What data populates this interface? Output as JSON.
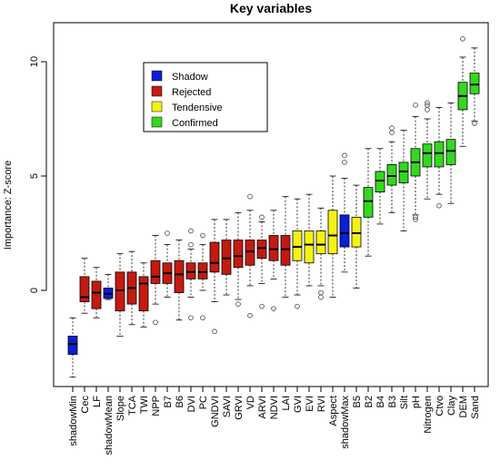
{
  "chart_data": {
    "type": "boxplot",
    "title": "Key variables",
    "xlabel": "",
    "ylabel": "Importance: Z-score",
    "ylim": [
      -4.2,
      11.6
    ],
    "yticks": [
      0,
      5,
      10
    ],
    "grid": false,
    "legend": {
      "placement": "top-left",
      "entries": [
        {
          "label": "Shadow",
          "color": "#0a1fd6"
        },
        {
          "label": "Rejected",
          "color": "#c41a10"
        },
        {
          "label": "Tendensive",
          "color": "#f4f215"
        },
        {
          "label": "Confirmed",
          "color": "#33d91d"
        }
      ]
    },
    "categories": [
      "shadowMin",
      "Cec",
      "LF",
      "shadowMean",
      "Slope",
      "TCA",
      "TWI",
      "NPP",
      "B7",
      "B6",
      "DVI",
      "PC",
      "GNDVI",
      "SAVI",
      "GRVI",
      "VD",
      "ARVI",
      "NDVI",
      "LAI",
      "GVI",
      "EVI",
      "RVI",
      "Aspect",
      "shadowMax",
      "B5",
      "B2",
      "B4",
      "B3",
      "Silt",
      "pH",
      "Nitrogen",
      "Ctvo",
      "Clay",
      "DEM",
      "Sand"
    ],
    "series": [
      {
        "name": "shadowMin",
        "group": "Shadow",
        "color": "#0a1fd6",
        "whisker_low": -3.8,
        "q1": -2.8,
        "median": -2.35,
        "q3": -2.0,
        "whisker_high": -1.2,
        "outliers": []
      },
      {
        "name": "Cec",
        "group": "Rejected",
        "color": "#c41a10",
        "whisker_low": -1.0,
        "q1": -0.5,
        "median": -0.3,
        "q3": 0.6,
        "whisker_high": 1.4,
        "outliers": []
      },
      {
        "name": "LF",
        "group": "Rejected",
        "color": "#c41a10",
        "whisker_low": -1.2,
        "q1": -0.8,
        "median": -0.1,
        "q3": 0.4,
        "whisker_high": 1.0,
        "outliers": []
      },
      {
        "name": "shadowMean",
        "group": "Shadow",
        "color": "#0a1fd6",
        "whisker_low": -0.4,
        "q1": -0.35,
        "median": -0.15,
        "q3": 0.1,
        "whisker_high": 0.7,
        "outliers": []
      },
      {
        "name": "Slope",
        "group": "Rejected",
        "color": "#c41a10",
        "whisker_low": -2.0,
        "q1": -0.9,
        "median": 0.0,
        "q3": 0.8,
        "whisker_high": 1.6,
        "outliers": []
      },
      {
        "name": "TCA",
        "group": "Rejected",
        "color": "#c41a10",
        "whisker_low": -1.5,
        "q1": -0.6,
        "median": 0.1,
        "q3": 0.8,
        "whisker_high": 1.7,
        "outliers": []
      },
      {
        "name": "TWI",
        "group": "Rejected",
        "color": "#c41a10",
        "whisker_low": -1.6,
        "q1": -0.9,
        "median": 0.3,
        "q3": 0.6,
        "whisker_high": 1.2,
        "outliers": []
      },
      {
        "name": "NPP",
        "group": "Rejected",
        "color": "#c41a10",
        "whisker_low": -0.6,
        "q1": 0.3,
        "median": 0.6,
        "q3": 1.3,
        "whisker_high": 2.4,
        "outliers": [
          -1.4
        ]
      },
      {
        "name": "B7",
        "group": "Rejected",
        "color": "#c41a10",
        "whisker_low": -0.3,
        "q1": 0.3,
        "median": 0.75,
        "q3": 1.2,
        "whisker_high": 2.0,
        "outliers": [
          2.5
        ]
      },
      {
        "name": "B6",
        "group": "Rejected",
        "color": "#c41a10",
        "whisker_low": -1.3,
        "q1": -0.1,
        "median": 0.7,
        "q3": 1.3,
        "whisker_high": 2.2,
        "outliers": []
      },
      {
        "name": "DVI",
        "group": "Rejected",
        "color": "#c41a10",
        "whisker_low": -0.3,
        "q1": 0.5,
        "median": 0.8,
        "q3": 1.2,
        "whisker_high": 1.8,
        "outliers": [
          2.0,
          2.6,
          -1.2
        ]
      },
      {
        "name": "PC",
        "group": "Rejected",
        "color": "#c41a10",
        "whisker_low": 0.0,
        "q1": 0.5,
        "median": 0.8,
        "q3": 1.2,
        "whisker_high": 2.0,
        "outliers": [
          2.4,
          -1.2
        ]
      },
      {
        "name": "GNDVI",
        "group": "Rejected",
        "color": "#c41a10",
        "whisker_low": -0.5,
        "q1": 0.8,
        "median": 1.2,
        "q3": 2.1,
        "whisker_high": 3.1,
        "outliers": [
          -1.8
        ]
      },
      {
        "name": "SAVI",
        "group": "Rejected",
        "color": "#c41a10",
        "whisker_low": -0.2,
        "q1": 0.7,
        "median": 1.4,
        "q3": 2.2,
        "whisker_high": 3.1,
        "outliers": []
      },
      {
        "name": "GRVI",
        "group": "Rejected",
        "color": "#c41a10",
        "whisker_low": -0.4,
        "q1": 1.0,
        "median": 1.5,
        "q3": 2.2,
        "whisker_high": 3.4,
        "outliers": [
          -0.6
        ]
      },
      {
        "name": "VD",
        "group": "Rejected",
        "color": "#c41a10",
        "whisker_low": 0.2,
        "q1": 1.1,
        "median": 1.7,
        "q3": 2.2,
        "whisker_high": 3.5,
        "outliers": [
          4.1,
          -1.1
        ]
      },
      {
        "name": "ARVI",
        "group": "Rejected",
        "color": "#c41a10",
        "whisker_low": 0.3,
        "q1": 1.4,
        "median": 1.85,
        "q3": 2.2,
        "whisker_high": 3.0,
        "outliers": [
          3.2,
          -0.7
        ]
      },
      {
        "name": "NDVI",
        "group": "Rejected",
        "color": "#c41a10",
        "whisker_low": 0.5,
        "q1": 1.3,
        "median": 1.8,
        "q3": 2.4,
        "whisker_high": 3.5,
        "outliers": [
          -0.8
        ]
      },
      {
        "name": "LAI",
        "group": "Rejected",
        "color": "#c41a10",
        "whisker_low": -0.3,
        "q1": 1.1,
        "median": 1.8,
        "q3": 2.4,
        "whisker_high": 4.1,
        "outliers": []
      },
      {
        "name": "GVI",
        "group": "Tendensive",
        "color": "#f4f215",
        "whisker_low": -0.2,
        "q1": 1.3,
        "median": 1.9,
        "q3": 2.6,
        "whisker_high": 4.0,
        "outliers": [
          -0.7
        ]
      },
      {
        "name": "EVI",
        "group": "Tendensive",
        "color": "#f4f215",
        "whisker_low": 0.2,
        "q1": 1.2,
        "median": 2.0,
        "q3": 2.6,
        "whisker_high": 4.2,
        "outliers": []
      },
      {
        "name": "RVI",
        "group": "Tendensive",
        "color": "#f4f215",
        "whisker_low": 0.2,
        "q1": 1.6,
        "median": 2.0,
        "q3": 2.6,
        "whisker_high": 3.6,
        "outliers": [
          -0.1,
          -0.3
        ]
      },
      {
        "name": "Aspect",
        "group": "Tendensive",
        "color": "#f4f215",
        "whisker_low": -0.3,
        "q1": 1.6,
        "median": 2.4,
        "q3": 3.5,
        "whisker_high": 5.0,
        "outliers": []
      },
      {
        "name": "shadowMax",
        "group": "Shadow",
        "color": "#0a1fd6",
        "whisker_low": 0.8,
        "q1": 1.9,
        "median": 2.5,
        "q3": 3.3,
        "whisker_high": 4.9,
        "outliers": [
          5.6,
          5.9
        ]
      },
      {
        "name": "B5",
        "group": "Tendensive",
        "color": "#f4f215",
        "whisker_low": 0.1,
        "q1": 1.9,
        "median": 2.5,
        "q3": 3.2,
        "whisker_high": 4.6,
        "outliers": []
      },
      {
        "name": "B2",
        "group": "Confirmed",
        "color": "#33d91d",
        "whisker_low": 1.5,
        "q1": 3.2,
        "median": 3.9,
        "q3": 4.5,
        "whisker_high": 6.2,
        "outliers": []
      },
      {
        "name": "B4",
        "group": "Confirmed",
        "color": "#33d91d",
        "whisker_low": 2.9,
        "q1": 4.3,
        "median": 4.8,
        "q3": 5.2,
        "whisker_high": 6.2,
        "outliers": []
      },
      {
        "name": "B3",
        "group": "Confirmed",
        "color": "#33d91d",
        "whisker_low": 3.4,
        "q1": 4.6,
        "median": 5.0,
        "q3": 5.5,
        "whisker_high": 6.5,
        "outliers": [
          6.9,
          7.1
        ]
      },
      {
        "name": "Silt",
        "group": "Confirmed",
        "color": "#33d91d",
        "whisker_low": 2.6,
        "q1": 4.7,
        "median": 5.2,
        "q3": 5.6,
        "whisker_high": 7.0,
        "outliers": []
      },
      {
        "name": "pH",
        "group": "Confirmed",
        "color": "#33d91d",
        "whisker_low": 3.3,
        "q1": 5.0,
        "median": 5.6,
        "q3": 6.2,
        "whisker_high": 7.6,
        "outliers": [
          3.1,
          3.2,
          8.1
        ]
      },
      {
        "name": "Nitrogen",
        "group": "Confirmed",
        "color": "#33d91d",
        "whisker_low": 4.0,
        "q1": 5.4,
        "median": 6.0,
        "q3": 6.4,
        "whisker_high": 7.5,
        "outliers": [
          7.9,
          8.1,
          8.2
        ]
      },
      {
        "name": "Ctvo",
        "group": "Confirmed",
        "color": "#33d91d",
        "whisker_low": 4.2,
        "q1": 5.4,
        "median": 6.0,
        "q3": 6.5,
        "whisker_high": 8.0,
        "outliers": [
          3.7
        ]
      },
      {
        "name": "Clay",
        "group": "Confirmed",
        "color": "#33d91d",
        "whisker_low": 3.8,
        "q1": 5.5,
        "median": 6.1,
        "q3": 6.6,
        "whisker_high": 8.2,
        "outliers": []
      },
      {
        "name": "DEM",
        "group": "Confirmed",
        "color": "#33d91d",
        "whisker_low": 6.3,
        "q1": 7.9,
        "median": 8.5,
        "q3": 9.1,
        "whisker_high": 10.2,
        "outliers": [
          11.0
        ]
      },
      {
        "name": "Sand",
        "group": "Confirmed",
        "color": "#33d91d",
        "whisker_low": 7.4,
        "q1": 8.6,
        "median": 9.0,
        "q3": 9.5,
        "whisker_high": 10.6,
        "outliers": [
          7.3
        ]
      }
    ]
  }
}
